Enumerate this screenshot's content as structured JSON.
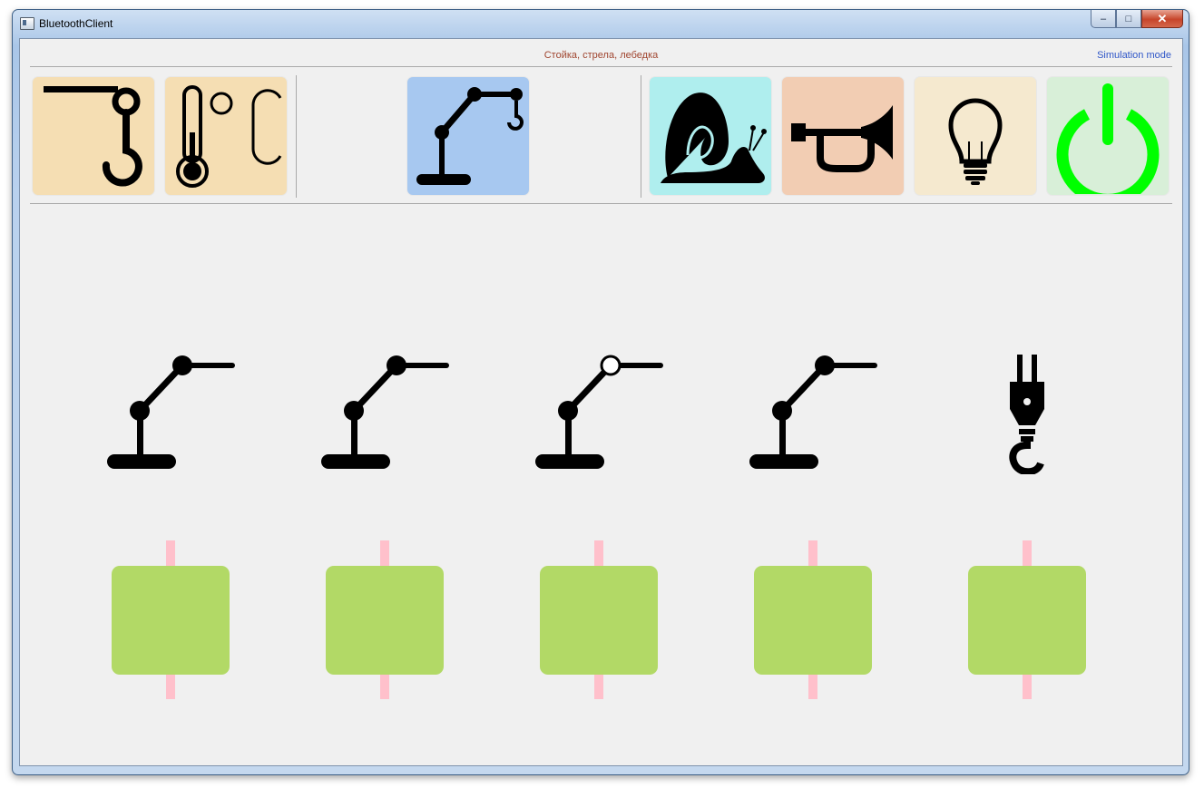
{
  "window": {
    "title": "BluetoothClient",
    "controls": {
      "minimize": "–",
      "restore": "□",
      "close": "✕"
    }
  },
  "header": {
    "mode_label": "Стойка, стрела, лебедка",
    "simulation_label": "Simulation mode",
    "mode_color": "#a0452f",
    "simulation_color": "#2f56c8"
  },
  "toolbar": {
    "left_tiles": [
      {
        "icon": "crane-hook-icon",
        "color": "#f5deb3"
      },
      {
        "icon": "thermometer-celsius-icon",
        "color": "#f5deb3"
      }
    ],
    "center_tile": {
      "icon": "crane-arm-hook-icon",
      "color": "#a7c8f0",
      "selected": true
    },
    "right_tiles": [
      {
        "icon": "snail-icon",
        "color": "#afeeee"
      },
      {
        "icon": "horn-icon",
        "color": "#f2cdb3"
      },
      {
        "icon": "lightbulb-icon",
        "color": "#f5e9cf"
      },
      {
        "icon": "power-icon",
        "color": "#d8efd8",
        "accent": "#00ff00"
      }
    ]
  },
  "joints": [
    {
      "icon": "crane-arm-icon",
      "active_joint": "base"
    },
    {
      "icon": "crane-arm-icon",
      "active_joint": "elbow"
    },
    {
      "icon": "crane-arm-icon",
      "active_joint": "top-open"
    },
    {
      "icon": "crane-arm-icon",
      "active_joint": "top"
    },
    {
      "icon": "winch-hook-icon",
      "active_joint": "hook"
    }
  ],
  "sliders": [
    {
      "name": "slider-1",
      "value": 0.5
    },
    {
      "name": "slider-2",
      "value": 0.5
    },
    {
      "name": "slider-3",
      "value": 0.5
    },
    {
      "name": "slider-4",
      "value": 0.5
    },
    {
      "name": "slider-5",
      "value": 0.5
    }
  ],
  "colors": {
    "slider_handle": "#b2d966",
    "slider_track": "#ffc0cb"
  }
}
